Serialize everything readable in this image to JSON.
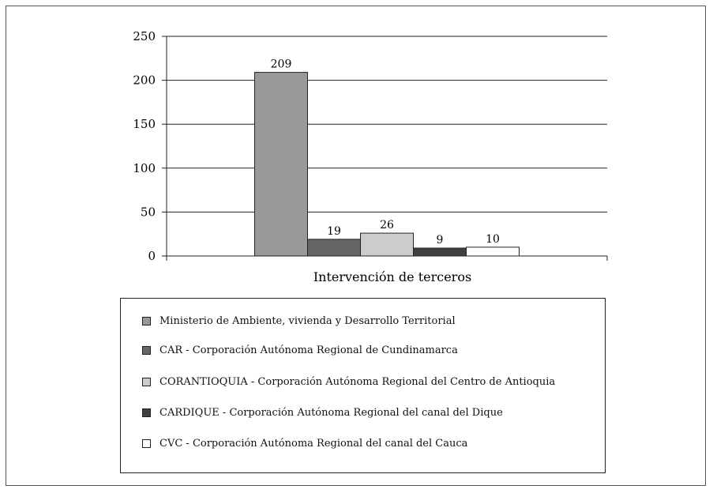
{
  "chart_data": {
    "type": "bar",
    "title": "",
    "xlabel": "Intervención de terceros",
    "ylabel": "",
    "ylim": [
      0,
      250
    ],
    "yticks": [
      0,
      50,
      100,
      150,
      200,
      250
    ],
    "categories": [
      "Intervención de terceros"
    ],
    "grid": true,
    "legend_position": "bottom",
    "series": [
      {
        "name": "Ministerio de Ambiente, vivienda y Desarrollo Territorial",
        "values": [
          209
        ],
        "color": "#999999"
      },
      {
        "name": "CAR - Corporación Autónoma Regional de Cundinamarca",
        "values": [
          19
        ],
        "color": "#666666"
      },
      {
        "name": "CORANTIOQUIA - Corporación Autónoma Regional del Centro de Antioquia",
        "values": [
          26
        ],
        "color": "#cccccc"
      },
      {
        "name": "CARDIQUE - Corporación Autónoma Regional del canal del Dique",
        "values": [
          9
        ],
        "color": "#404040"
      },
      {
        "name": "CVC - Corporación Autónoma Regional del canal del Cauca",
        "values": [
          10
        ],
        "color": "#ffffff"
      }
    ]
  }
}
